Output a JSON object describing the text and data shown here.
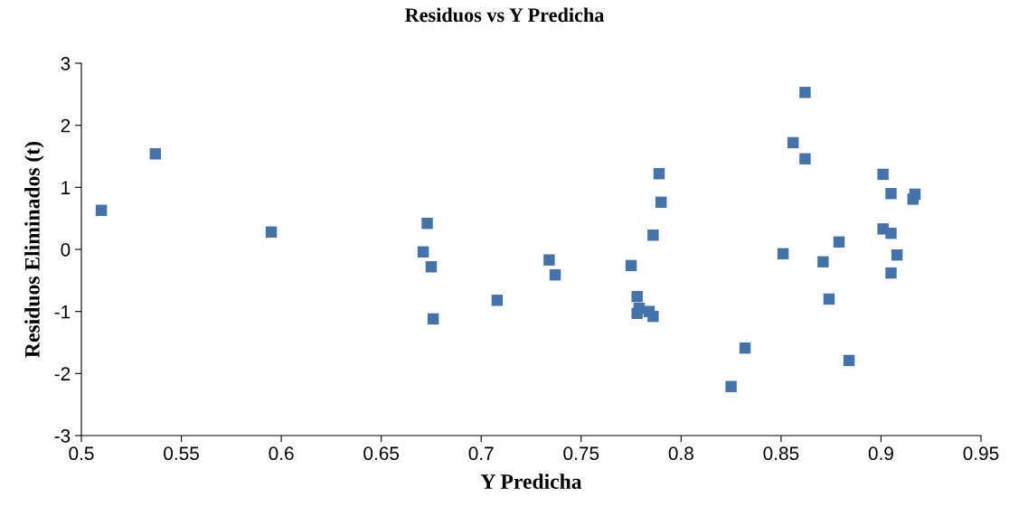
{
  "chart_data": {
    "type": "scatter",
    "title": "Residuos vs Y Predicha",
    "xlabel": "Y Predicha",
    "ylabel": "Residuos Eliminados (t)",
    "x": [
      0.51,
      0.537,
      0.595,
      0.673,
      0.671,
      0.675,
      0.676,
      0.708,
      0.734,
      0.737,
      0.775,
      0.778,
      0.778,
      0.779,
      0.784,
      0.786,
      0.786,
      0.789,
      0.79,
      0.825,
      0.832,
      0.851,
      0.856,
      0.862,
      0.862,
      0.871,
      0.874,
      0.879,
      0.884,
      0.901,
      0.901,
      0.905,
      0.905,
      0.905,
      0.908,
      0.916,
      0.917
    ],
    "series": [
      {
        "color": "#4472aa",
        "values": [
          0.63,
          1.54,
          0.28,
          0.42,
          -0.04,
          -0.28,
          -1.12,
          -0.82,
          -0.17,
          -0.41,
          -0.26,
          -0.76,
          -1.03,
          -0.95,
          -1.0,
          -1.08,
          0.23,
          1.22,
          0.76,
          -2.21,
          -1.59,
          -0.07,
          1.72,
          2.53,
          1.46,
          -0.2,
          -0.8,
          0.12,
          -1.79,
          1.21,
          0.33,
          0.9,
          0.26,
          -0.38,
          -0.09,
          0.81,
          0.89
        ]
      }
    ],
    "xlim": [
      0.5,
      0.95
    ],
    "xticks": [
      {
        "value": 0.5,
        "label": "0.5"
      },
      {
        "value": 0.55,
        "label": "0.55"
      },
      {
        "value": 0.6,
        "label": "0.6"
      },
      {
        "value": 0.65,
        "label": "0.65"
      },
      {
        "value": 0.7,
        "label": "0.7"
      },
      {
        "value": 0.75,
        "label": "0.75"
      },
      {
        "value": 0.8,
        "label": "0.8"
      },
      {
        "value": 0.85,
        "label": "0.85"
      },
      {
        "value": 0.9,
        "label": "0.9"
      },
      {
        "value": 0.95,
        "label": "0.95"
      }
    ],
    "ylim": [
      -3,
      3
    ],
    "yticks": [
      -3,
      -2,
      -1,
      0,
      1,
      2,
      3
    ],
    "marker": "square",
    "grid": false,
    "legend": false
  }
}
